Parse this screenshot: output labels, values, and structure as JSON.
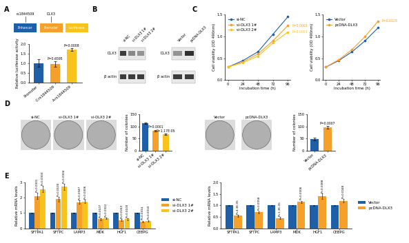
{
  "panel_labels": [
    "A",
    "B",
    "C",
    "D",
    "E"
  ],
  "schematic": {
    "snp": "rs1844509",
    "gene": "DLX3",
    "boxes": [
      {
        "label": "Enhancer",
        "color": "#1f5fa8"
      },
      {
        "label": "Promoter",
        "color": "#f5a02a"
      },
      {
        "label": "Luciferase",
        "color": "#f7c31c"
      }
    ]
  },
  "western_blot": {
    "blots": [
      {
        "lanes": [
          "si-NC",
          "si-DLX3 1#",
          "si-DLX3 2#"
        ],
        "rows": [
          {
            "name": "DLX3",
            "band_intensity": [
              0.9,
              0.55,
              0.5
            ]
          },
          {
            "name": "β actin",
            "band_intensity": [
              0.9,
              0.9,
              0.9
            ]
          }
        ]
      },
      {
        "lanes": [
          "Vector",
          "pcDNA-DLX3"
        ],
        "rows": [
          {
            "name": "DLX3",
            "band_intensity": [
              0.5,
              0.95
            ]
          },
          {
            "name": "β actin",
            "band_intensity": [
              0.9,
              0.9
            ]
          }
        ]
      }
    ]
  },
  "colony_images": [
    [
      "si-NC",
      "si-DLX3 1#",
      "si-DLX3 2#"
    ],
    [
      "Vector",
      "pcDNA-DLX3"
    ]
  ],
  "chart_data": [
    {
      "panel": "A",
      "type": "bar",
      "categories": [
        "Promoter",
        "C-rs1844509",
        "A-rs1844509"
      ],
      "values": [
        1.0,
        0.95,
        1.7
      ],
      "errors": [
        0.2,
        0.15,
        0.08
      ],
      "colors": [
        "#1f5fa8",
        "#f5a02a",
        "#f7c31c"
      ],
      "annotations": [
        null,
        "P=0.6595",
        "P=0.0008"
      ],
      "y_label": "Relative luciferase activity",
      "ylim": [
        0,
        2
      ],
      "yticks": [
        {
          "value": 0,
          "label": "0.0"
        },
        {
          "value": 0.5,
          "label": "0.5"
        },
        {
          "value": 1,
          "label": "1.0"
        },
        {
          "value": 1.5,
          "label": "1.5"
        },
        {
          "value": 2,
          "label": "2.0"
        }
      ]
    },
    {
      "panel": "C",
      "type": "line",
      "x": [
        0,
        24,
        48,
        72,
        96
      ],
      "series": [
        {
          "name": "si-NC",
          "color": "#1f5fa8",
          "values": [
            0.3,
            0.45,
            0.65,
            1.05,
            1.45
          ]
        },
        {
          "name": "si-DLX3 1#",
          "color": "#f5a02a",
          "values": [
            0.3,
            0.42,
            0.6,
            0.9,
            1.25
          ],
          "annotation": "P=0.0003"
        },
        {
          "name": "si-DLX3 2#",
          "color": "#f7c31c",
          "values": [
            0.3,
            0.4,
            0.55,
            0.85,
            1.1
          ],
          "annotation": "P=0.0001"
        }
      ],
      "marker": "o",
      "legend": "upper left",
      "x_label": "Incubation time (h)",
      "y_label": "Cell viability (OD 490nm)",
      "xlim": [
        -5,
        100
      ],
      "xticks": [
        0,
        24,
        48,
        72,
        96
      ],
      "ylim": [
        0,
        1.5
      ],
      "yticks": [
        {
          "value": 0,
          "label": "0.0"
        },
        {
          "value": 0.5,
          "label": "0.5"
        },
        {
          "value": 1,
          "label": "1.0"
        },
        {
          "value": 1.5,
          "label": "1.5"
        }
      ]
    },
    {
      "panel": "C",
      "type": "line",
      "x": [
        0,
        24,
        48,
        72,
        96
      ],
      "series": [
        {
          "name": "Vector",
          "color": "#1f5fa8",
          "values": [
            0.3,
            0.45,
            0.65,
            0.9,
            1.2
          ]
        },
        {
          "name": "pcDNA-DLX3",
          "color": "#f5a02a",
          "values": [
            0.3,
            0.47,
            0.7,
            1.0,
            1.35
          ],
          "annotation": "P=0.0128"
        }
      ],
      "marker": "o",
      "legend": "upper left",
      "x_label": "Incubation time (h)",
      "y_label": "Cell viability (OD 490nm)",
      "xlim": [
        -5,
        100
      ],
      "xticks": [
        0,
        24,
        48,
        72,
        96
      ],
      "ylim": [
        0,
        1.5
      ],
      "yticks": [
        {
          "value": 0,
          "label": "0.0"
        },
        {
          "value": 0.5,
          "label": "0.5"
        },
        {
          "value": 1,
          "label": "1.0"
        },
        {
          "value": 1.5,
          "label": "1.5"
        }
      ]
    },
    {
      "panel": "D",
      "type": "bar",
      "categories": [
        "si-NC",
        "si-DLX3 1#",
        "si-DLX3 2#"
      ],
      "values": [
        112,
        82,
        68
      ],
      "errors": [
        3,
        4,
        3
      ],
      "colors": [
        "#1f5fa8",
        "#f5a02a",
        "#f7c31c"
      ],
      "annotations": [
        null,
        "P=0.0001",
        "P=1.17E-05"
      ],
      "y_label": "Number of colonies",
      "ylim": [
        0,
        150
      ],
      "yticks": [
        0,
        50,
        100,
        150
      ]
    },
    {
      "panel": "D",
      "type": "bar",
      "categories": [
        "Vector",
        "pcDNA-DLX3"
      ],
      "values": [
        48,
        95
      ],
      "errors": [
        5,
        6
      ],
      "colors": [
        "#1f5fa8",
        "#f5a02a"
      ],
      "annotations": [
        null,
        "P=0.0007"
      ],
      "y_label": "Number of colonies",
      "ylim": [
        0,
        150
      ],
      "yticks": [
        0,
        50,
        100,
        150
      ]
    },
    {
      "panel": "E",
      "type": "bar",
      "categories": [
        "SFTPA1",
        "SFTPC",
        "LAMP3",
        "MDK",
        "HGF1",
        "CEBPG"
      ],
      "series": [
        {
          "name": "si-NC",
          "color": "#1f5fa8",
          "values": [
            1,
            1,
            1,
            1,
            1,
            1
          ],
          "errors": [
            0.02,
            0.02,
            0.02,
            0.02,
            0.02,
            0.02
          ]
        },
        {
          "name": "si-DLX3 1#",
          "color": "#f5a02a",
          "values": [
            2.1,
            1.9,
            1.7,
            0.6,
            0.55,
            0.45
          ],
          "errors": [
            0.2,
            0.15,
            0.12,
            0.05,
            0.05,
            0.05
          ],
          "annotations": [
            "P=0.0001",
            "P=0.0100",
            "P=0.0047",
            "P=0.0107",
            "P=0.0243",
            "P=0.0014"
          ]
        },
        {
          "name": "si-DLX3 2#",
          "color": "#f7c31c",
          "values": [
            2.55,
            2.7,
            1.75,
            0.65,
            0.6,
            0.5
          ],
          "errors": [
            0.2,
            0.2,
            0.12,
            0.05,
            0.05,
            0.05
          ],
          "annotations": [
            "P=0.0003",
            "P=0.0004",
            "P=0.0006",
            "P=0.0022",
            "P=0.0100",
            "P=0.0010"
          ]
        }
      ],
      "legend": "right",
      "y_label": "Relative mRNA levels",
      "ylim": [
        0,
        3
      ],
      "yticks": [
        0,
        1,
        2,
        3
      ]
    },
    {
      "panel": "E",
      "type": "bar",
      "categories": [
        "SFTPA1",
        "SFTPC",
        "LAMP3",
        "MDK",
        "HGF1",
        "CEBPG"
      ],
      "series": [
        {
          "name": "Vector",
          "color": "#1f5fa8",
          "values": [
            1,
            1,
            1,
            1,
            1,
            1
          ],
          "errors": [
            0.02,
            0.02,
            0.02,
            0.02,
            0.02,
            0.02
          ]
        },
        {
          "name": "pcDNA-DLX3",
          "color": "#f5a02a",
          "values": [
            0.55,
            0.7,
            0.45,
            1.15,
            1.4,
            1.2
          ],
          "errors": [
            0.04,
            0.05,
            0.04,
            0.05,
            0.12,
            0.08
          ],
          "annotations": [
            "P=4.3E-05",
            "P=0.0058",
            "P=1.3E-05",
            "P=0.0006",
            "P=0.0088",
            "P=0.0048"
          ]
        }
      ],
      "legend": "right",
      "y_label": "Relative mRNA levels",
      "ylim": [
        0,
        2
      ],
      "yticks": [
        {
          "value": 0,
          "label": "0.0"
        },
        {
          "value": 0.5,
          "label": "0.5"
        },
        {
          "value": 1,
          "label": "1.0"
        },
        {
          "value": 1.5,
          "label": "1.5"
        },
        {
          "value": 2,
          "label": "2.0"
        }
      ]
    }
  ]
}
